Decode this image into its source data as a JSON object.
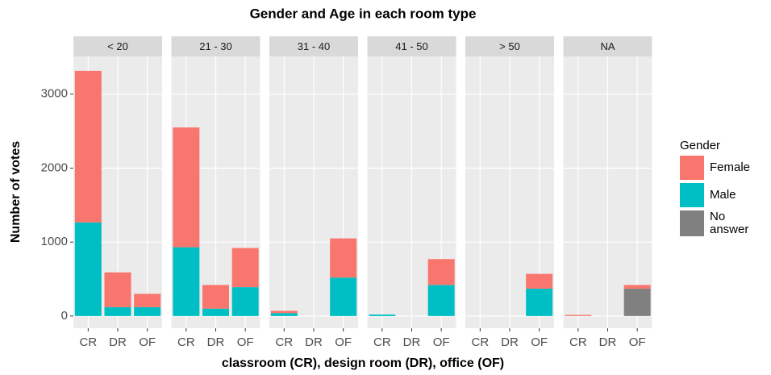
{
  "chart_data": {
    "type": "bar",
    "stacked": true,
    "title": "Gender and Age in each room type",
    "xlabel": "classroom (CR), design room (DR), office (OF)",
    "ylabel": "Number of votes",
    "legend_title": "Gender",
    "facets": [
      "< 20",
      "21 - 30",
      "31 - 40",
      "41 - 50",
      "> 50",
      "NA"
    ],
    "categories": [
      "CR",
      "DR",
      "OF"
    ],
    "series": [
      {
        "name": "Female",
        "color": "#F8766D",
        "values": [
          [
            2050,
            470,
            180
          ],
          [
            1620,
            320,
            530
          ],
          [
            30,
            0,
            530
          ],
          [
            0,
            0,
            350
          ],
          [
            0,
            0,
            200
          ],
          [
            15,
            0,
            50
          ]
        ]
      },
      {
        "name": "Male",
        "color": "#00BFC4",
        "values": [
          [
            1265,
            120,
            120
          ],
          [
            930,
            100,
            390
          ],
          [
            40,
            0,
            520
          ],
          [
            20,
            0,
            420
          ],
          [
            0,
            0,
            370
          ],
          [
            0,
            0,
            0
          ]
        ]
      },
      {
        "name": "No answer",
        "color": "#808080",
        "values": [
          [
            0,
            0,
            0
          ],
          [
            0,
            0,
            0
          ],
          [
            0,
            0,
            0
          ],
          [
            0,
            0,
            0
          ],
          [
            0,
            0,
            0
          ],
          [
            0,
            0,
            370
          ]
        ]
      }
    ],
    "ylim": [
      -165,
      3510
    ],
    "yticks": [
      0,
      1000,
      2000,
      3000
    ],
    "grid": true
  }
}
